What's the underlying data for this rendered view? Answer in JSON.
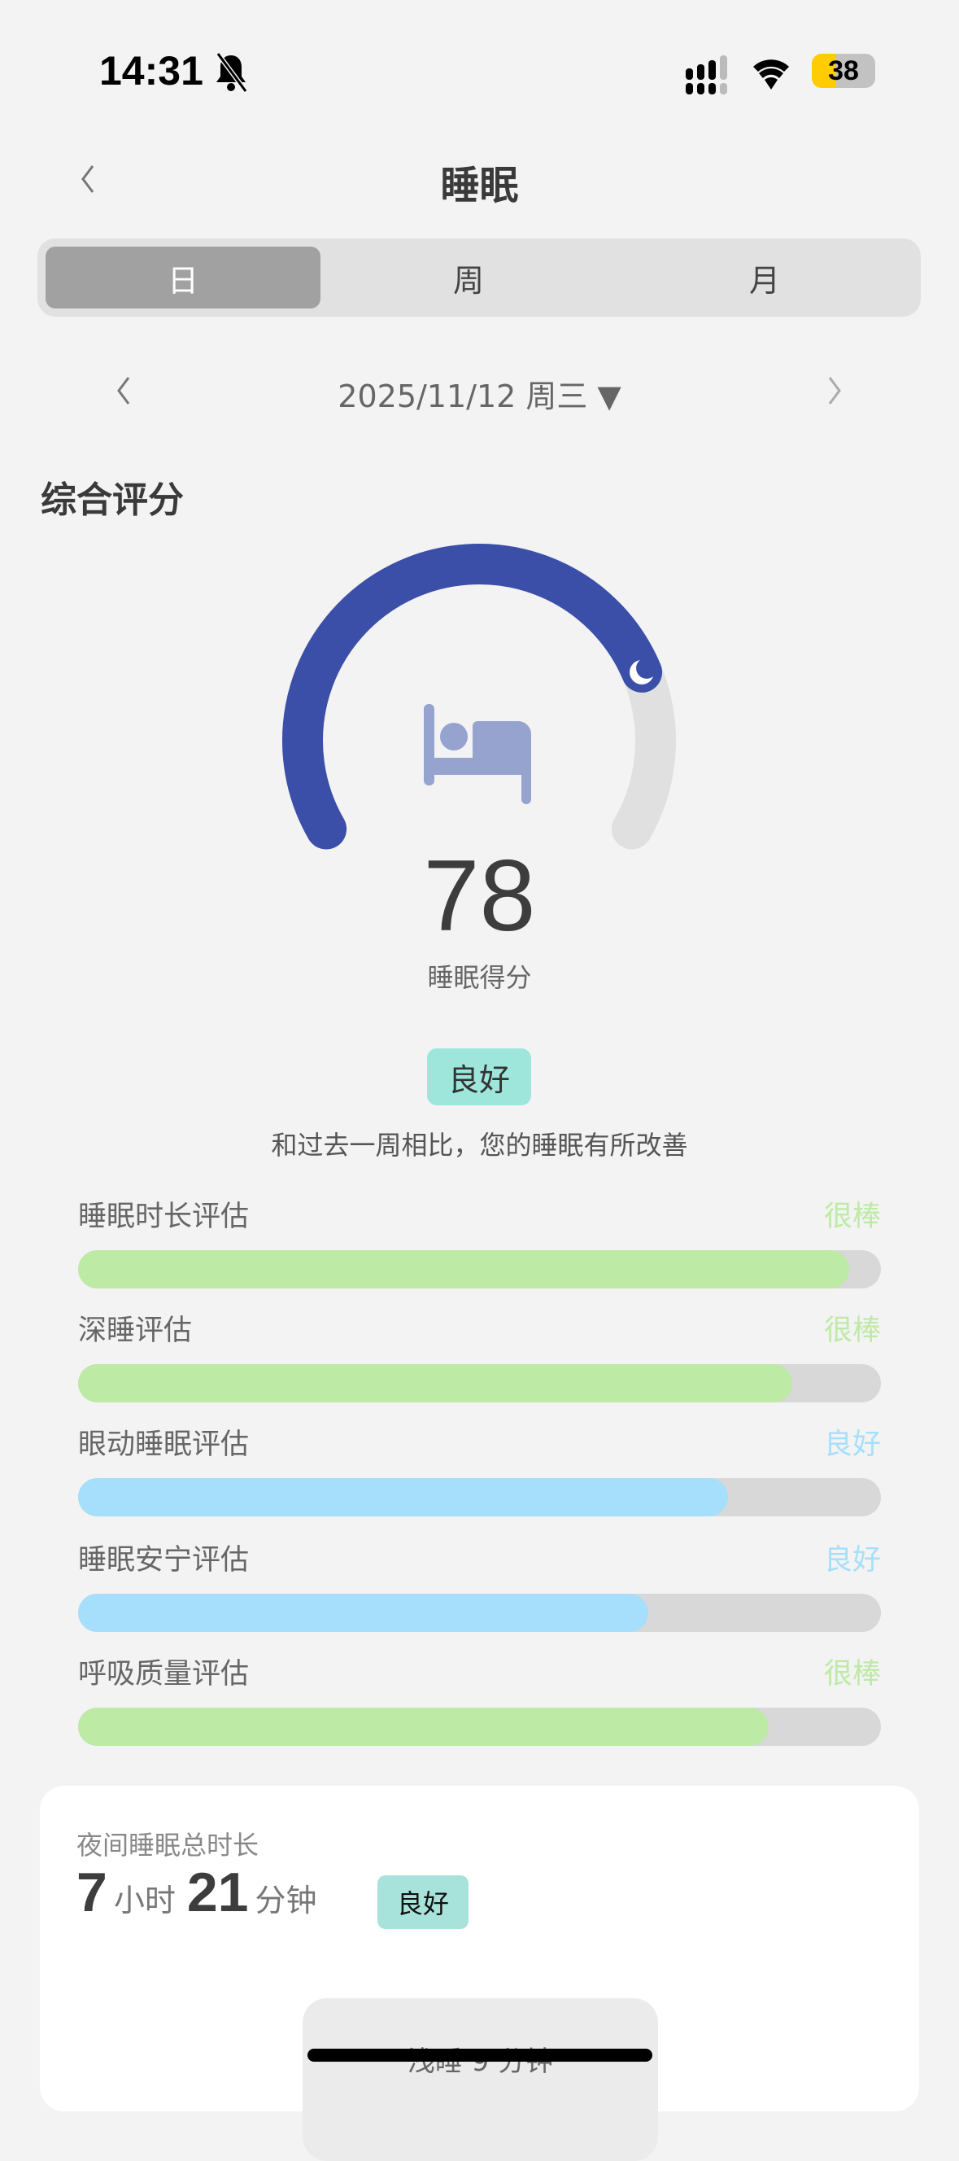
{
  "status_bar": {
    "time": "14:31",
    "battery": "38",
    "icons": [
      "bell-slash-icon",
      "signal-icon",
      "wifi-icon",
      "battery-icon"
    ]
  },
  "header": {
    "title": "睡眠",
    "back_icon": "chevron-left-icon"
  },
  "tabs": [
    {
      "label": "日",
      "active": true
    },
    {
      "label": "周",
      "active": false
    },
    {
      "label": "月",
      "active": false
    }
  ],
  "date_nav": {
    "date": "2025/11/12 周三 ▼"
  },
  "overall": {
    "heading": "综合评分",
    "score": 78,
    "score_max": 100,
    "score_label": "睡眠得分",
    "rating": "良好",
    "comparison": "和过去一周相比，您的睡眠有所改善",
    "colors": {
      "arc": "#3b4fa8",
      "track": "#e0e0e0",
      "bed_icon": "#97a3cf"
    }
  },
  "assessments": [
    {
      "label": "睡眠时长评估",
      "rating": "很棒",
      "level": 0.96,
      "color": "#bdeaa5"
    },
    {
      "label": "深睡评估",
      "rating": "很棒",
      "level": 0.89,
      "color": "#bdeaa5"
    },
    {
      "label": "眼动睡眠评估",
      "rating": "良好",
      "level": 0.81,
      "color": "#a6dffb"
    },
    {
      "label": "睡眠安宁评估",
      "rating": "良好",
      "level": 0.71,
      "color": "#a6dffb"
    },
    {
      "label": "呼吸质量评估",
      "rating": "很棒",
      "level": 0.86,
      "color": "#bdeaa5"
    }
  ],
  "night_card": {
    "title": "夜间睡眠总时长",
    "hours": "7",
    "hours_unit": "小时",
    "minutes": "21",
    "minutes_unit": "分钟",
    "rating": "良好",
    "sub_label": "浅睡 9 分钟"
  }
}
